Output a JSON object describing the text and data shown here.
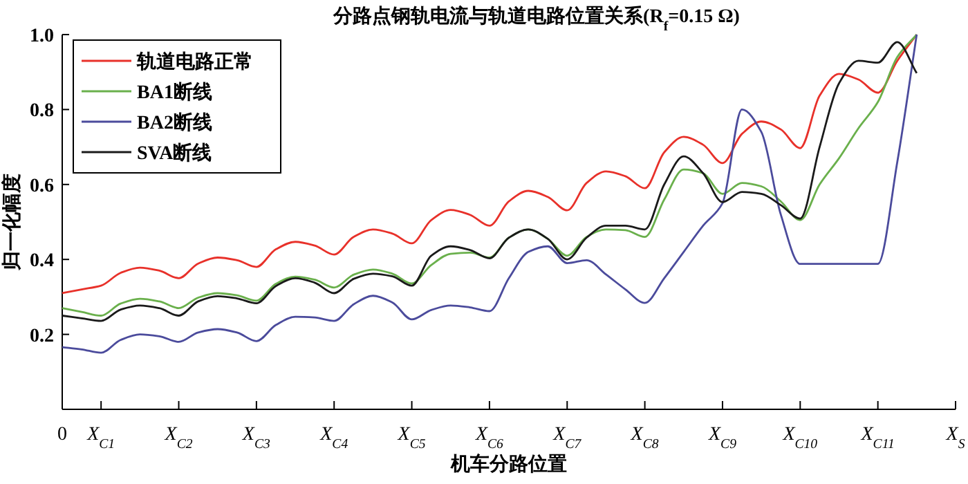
{
  "chart_data": {
    "type": "line",
    "title": "分路点钢轨电流与轨道电路位置关系(R$_{f}$=0.15 Ω)",
    "xlabel": "机车分路位置",
    "ylabel": "归一化幅度",
    "categories": [
      "0",
      null,
      "X$_{C1}$",
      null,
      null,
      null,
      "X$_{C2}$",
      null,
      null,
      null,
      "X$_{C3}$",
      null,
      null,
      null,
      "X$_{C4}$",
      null,
      null,
      null,
      "X$_{C5}$",
      null,
      null,
      null,
      "X$_{C6}$",
      null,
      null,
      null,
      "X$_{C7}$",
      null,
      null,
      null,
      "X$_{C8}$",
      null,
      null,
      null,
      "X$_{C9}$",
      null,
      null,
      null,
      "X$_{C10}$",
      null,
      null,
      null,
      "X$_{C11}$",
      null,
      null,
      null,
      "X$_{S}$"
    ],
    "ylim": [
      0,
      1
    ],
    "yticks": [
      0.2,
      0.4,
      0.6,
      0.8,
      {
        "value": 1,
        "label": "1.0"
      }
    ],
    "legend": "top left",
    "series": [
      {
        "name": "轨道电路正常",
        "color": "#e8312a",
        "values": [
          0.31,
          0.32,
          0.33,
          0.364,
          0.378,
          0.37,
          0.35,
          0.389,
          0.405,
          0.398,
          0.38,
          0.427,
          0.447,
          0.437,
          0.413,
          0.46,
          0.48,
          0.469,
          0.443,
          0.505,
          0.532,
          0.519,
          0.49,
          0.555,
          0.583,
          0.567,
          0.531,
          0.604,
          0.635,
          0.622,
          0.59,
          0.686,
          0.727,
          0.706,
          0.657,
          0.735,
          0.768,
          0.747,
          0.697,
          0.837,
          0.895,
          0.88,
          0.845,
          0.93,
          1.0,
          null,
          null
        ]
      },
      {
        "name": "BA1断线",
        "color": "#6ab04c",
        "values": [
          0.27,
          0.26,
          0.25,
          0.282,
          0.295,
          0.288,
          0.27,
          0.298,
          0.31,
          0.304,
          0.29,
          0.335,
          0.354,
          0.346,
          0.325,
          0.359,
          0.373,
          0.362,
          0.336,
          0.385,
          0.415,
          0.418,
          0.405,
          0.458,
          0.48,
          0.455,
          0.41,
          0.46,
          0.48,
          0.478,
          0.46,
          0.56,
          0.64,
          0.63,
          0.575,
          0.604,
          0.595,
          0.555,
          0.505,
          0.6,
          0.67,
          0.75,
          0.82,
          0.94,
          1.0,
          null,
          null
        ]
      },
      {
        "name": "BA2断线",
        "color": "#4b4b9c",
        "values": [
          0.166,
          0.16,
          0.151,
          0.185,
          0.2,
          0.195,
          0.18,
          0.205,
          0.214,
          0.205,
          0.182,
          0.225,
          0.247,
          0.245,
          0.236,
          0.28,
          0.303,
          0.285,
          0.24,
          0.265,
          0.277,
          0.272,
          0.262,
          0.35,
          0.42,
          0.435,
          0.39,
          0.398,
          0.36,
          0.32,
          0.284,
          0.35,
          0.42,
          0.49,
          0.55,
          0.8,
          0.74,
          0.52,
          0.388,
          0.388,
          0.388,
          0.388,
          0.388,
          0.66,
          1.0,
          null,
          null
        ]
      },
      {
        "name": "SVA断线",
        "color": "#1a1a1a",
        "values": [
          0.25,
          0.243,
          0.236,
          0.266,
          0.277,
          0.27,
          0.25,
          0.288,
          0.302,
          0.296,
          0.283,
          0.329,
          0.35,
          0.338,
          0.31,
          0.348,
          0.362,
          0.355,
          0.33,
          0.41,
          0.435,
          0.425,
          0.403,
          0.458,
          0.48,
          0.455,
          0.4,
          0.458,
          0.49,
          0.49,
          0.48,
          0.6,
          0.675,
          0.63,
          0.553,
          0.58,
          0.575,
          0.545,
          0.509,
          0.7,
          0.87,
          0.93,
          0.925,
          0.98,
          0.897,
          null,
          null
        ]
      }
    ]
  }
}
